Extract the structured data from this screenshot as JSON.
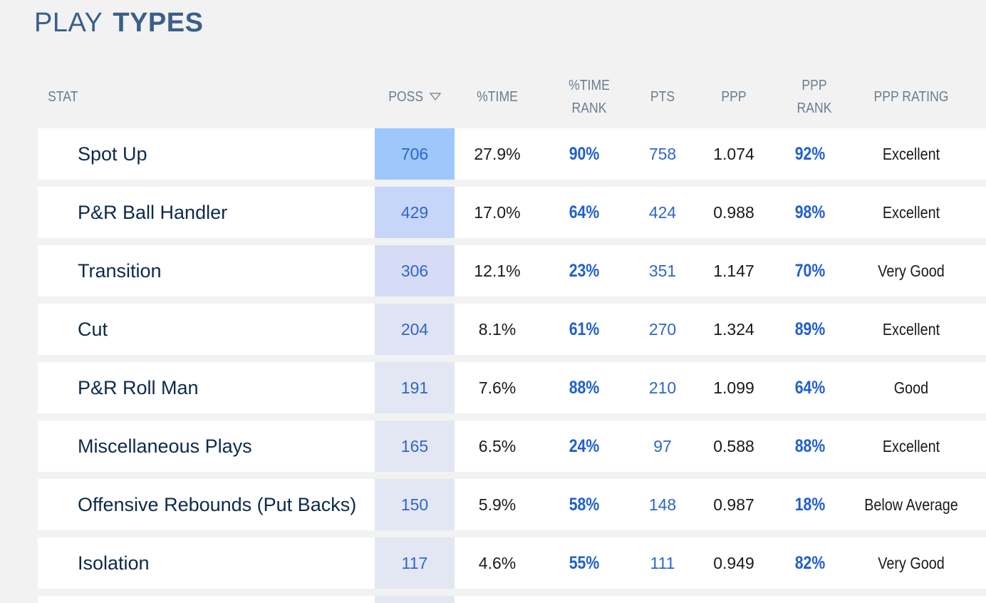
{
  "title": {
    "light": "PLAY",
    "bold": "TYPES"
  },
  "columns": {
    "stat": "STAT",
    "poss": "POSS",
    "time": "%TIME",
    "time_rank_1": "%TIME",
    "time_rank_2": "RANK",
    "pts": "PTS",
    "ppp": "PPP",
    "ppp_rank_1": "PPP",
    "ppp_rank_2": "RANK",
    "ppp_rating": "PPP RATING"
  },
  "sort": {
    "column": "POSS",
    "direction": "descending",
    "icon": "sort-down-icon"
  },
  "colors": {
    "poss_highlight_levels": [
      "#9ec7fb",
      "#c6d6f8",
      "#d6dcf6",
      "#e0e3f4",
      "#e3e6f3",
      "#e3e6f3",
      "#e3e6f3",
      "#e3e6f3"
    ],
    "rank_text": "#1f5fd1",
    "title": "#3a5f8a"
  },
  "rows": [
    {
      "stat": "Spot Up",
      "poss": "706",
      "time": "27.9%",
      "time_rank": "90%",
      "pts": "758",
      "ppp": "1.074",
      "ppp_rank": "92%",
      "rating": "Excellent"
    },
    {
      "stat": "P&R Ball Handler",
      "poss": "429",
      "time": "17.0%",
      "time_rank": "64%",
      "pts": "424",
      "ppp": "0.988",
      "ppp_rank": "98%",
      "rating": "Excellent"
    },
    {
      "stat": "Transition",
      "poss": "306",
      "time": "12.1%",
      "time_rank": "23%",
      "pts": "351",
      "ppp": "1.147",
      "ppp_rank": "70%",
      "rating": "Very Good"
    },
    {
      "stat": "Cut",
      "poss": "204",
      "time": "8.1%",
      "time_rank": "61%",
      "pts": "270",
      "ppp": "1.324",
      "ppp_rank": "89%",
      "rating": "Excellent"
    },
    {
      "stat": "P&R Roll Man",
      "poss": "191",
      "time": "7.6%",
      "time_rank": "88%",
      "pts": "210",
      "ppp": "1.099",
      "ppp_rank": "64%",
      "rating": "Good"
    },
    {
      "stat": "Miscellaneous Plays",
      "poss": "165",
      "time": "6.5%",
      "time_rank": "24%",
      "pts": "97",
      "ppp": "0.588",
      "ppp_rank": "88%",
      "rating": "Excellent"
    },
    {
      "stat": "Offensive Rebounds (Put Backs)",
      "poss": "150",
      "time": "5.9%",
      "time_rank": "58%",
      "pts": "148",
      "ppp": "0.987",
      "ppp_rank": "18%",
      "rating": "Below Average"
    },
    {
      "stat": "Isolation",
      "poss": "117",
      "time": "4.6%",
      "time_rank": "55%",
      "pts": "111",
      "ppp": "0.949",
      "ppp_rank": "82%",
      "rating": "Very Good"
    }
  ]
}
